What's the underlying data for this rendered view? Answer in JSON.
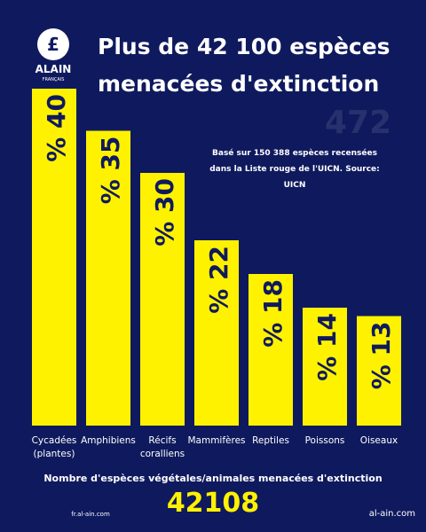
{
  "chart_data": {
    "type": "bar",
    "title_lines": [
      "Plus de 42 100 espèces",
      "menacées d'extinction"
    ],
    "watermark": "472",
    "subtitle": "Basé sur 150 388 espèces recensées dans la Liste rouge de l'UICN. Source: UICN",
    "categories": [
      "Cycadées (plantes)",
      "Amphibiens",
      "Récifs coralliens",
      "Mammifères",
      "Reptiles",
      "Poissons",
      "Oiseaux"
    ],
    "values": [
      40,
      35,
      30,
      22,
      18,
      14,
      13
    ],
    "value_labels": [
      "% 40",
      "% 35",
      "% 30",
      "% 22",
      "% 18",
      "% 14",
      "% 13"
    ],
    "color": "#fff200",
    "ylim": [
      0,
      40
    ],
    "footer_caption": "Nombre d'espèces végétales/animales menacées d'extinction",
    "footer_number": "42108"
  },
  "branding": {
    "logo_name": "ALAIN",
    "logo_sub": "FRANÇAIS",
    "site": "fr.al-ain.com",
    "corner_site": "al-ain.com"
  }
}
